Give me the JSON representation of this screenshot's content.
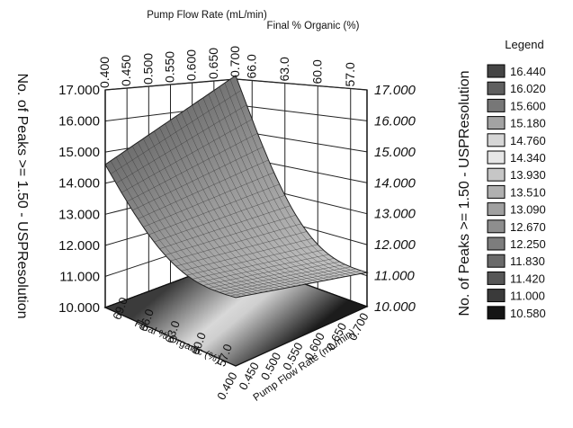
{
  "chart_data": {
    "type": "surface3d",
    "zlabel": "No. of Peaks >= 1.50 - USPResolution",
    "zlim": [
      10.0,
      17.0
    ],
    "z_ticks": [
      "10.000",
      "11.000",
      "12.000",
      "13.000",
      "14.000",
      "15.000",
      "16.000",
      "17.000"
    ],
    "x_label": "Pump Flow Rate (mL/min)",
    "x_ticks": [
      "0.400",
      "0.450",
      "0.500",
      "0.550",
      "0.600",
      "0.650",
      "0.700"
    ],
    "y_label": "Final % Organic (%)",
    "top_y_label": "Final % Organic (%)",
    "top_y_ticks": [
      "66.0",
      "63.0",
      "60.0",
      "57.0"
    ],
    "bottom_y_ticks": [
      "69.0",
      "66.0",
      "63.0",
      "60.0",
      "57.0"
    ],
    "surface_corners": [
      {
        "flow_rate": 0.4,
        "organic": 69.0,
        "peaks": 14.6
      },
      {
        "flow_rate": 0.7,
        "organic": 69.0,
        "peaks": 15.9
      },
      {
        "flow_rate": 0.7,
        "organic": 57.0,
        "peaks": 11.1
      },
      {
        "flow_rate": 0.4,
        "organic": 57.0,
        "peaks": 12.2
      }
    ],
    "legend": {
      "title": "Legend",
      "entries": [
        {
          "label": "16.440",
          "color": "#454545"
        },
        {
          "label": "16.020",
          "color": "#5f5f5f"
        },
        {
          "label": "15.600",
          "color": "#777777"
        },
        {
          "label": "15.180",
          "color": "#a3a3a3"
        },
        {
          "label": "14.760",
          "color": "#d6d6d6"
        },
        {
          "label": "14.340",
          "color": "#e6e6e6"
        },
        {
          "label": "13.930",
          "color": "#c6c6c6"
        },
        {
          "label": "13.510",
          "color": "#b0b0b0"
        },
        {
          "label": "13.090",
          "color": "#a0a0a0"
        },
        {
          "label": "12.670",
          "color": "#8e8e8e"
        },
        {
          "label": "12.250",
          "color": "#7d7d7d"
        },
        {
          "label": "11.830",
          "color": "#6a6a6a"
        },
        {
          "label": "11.420",
          "color": "#575757"
        },
        {
          "label": "11.000",
          "color": "#3a3a3a"
        },
        {
          "label": "10.580",
          "color": "#151515"
        }
      ]
    }
  }
}
